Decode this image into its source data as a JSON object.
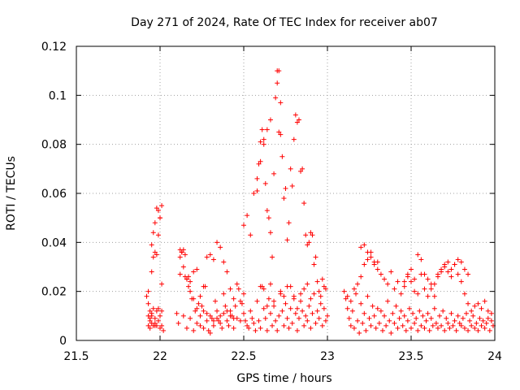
{
  "chart_data": {
    "type": "scatter",
    "title": "Day 271 of 2024, Rate Of TEC Index for receiver ab07",
    "xlabel": "GPS time / hours",
    "ylabel": "ROTI / TECUs",
    "xlim": [
      21.5,
      24
    ],
    "ylim": [
      0,
      0.12
    ],
    "x_ticks": [
      21.5,
      22,
      22.5,
      23,
      23.5,
      24
    ],
    "x_tick_labels": [
      "21.5",
      "22",
      "22.5",
      "23",
      "23.5",
      "24"
    ],
    "y_ticks": [
      0,
      0.02,
      0.04,
      0.06,
      0.08,
      0.1,
      0.12
    ],
    "y_tick_labels": [
      "0",
      "0.02",
      "0.04",
      "0.06",
      "0.08",
      "0.1",
      "0.12"
    ],
    "grid": true,
    "marker": "+",
    "color": "#ff0000",
    "series": [
      {
        "name": "ROTI",
        "x": [
          21.92,
          21.93,
          21.93,
          21.94,
          21.94,
          21.95,
          21.95,
          21.96,
          21.96,
          21.97,
          21.97,
          21.98,
          21.98,
          21.99,
          21.99,
          22.0,
          22.0,
          22.01,
          22.01,
          22.02,
          21.93,
          21.94,
          21.95,
          21.96,
          21.97,
          21.98,
          21.99,
          22.0,
          22.01,
          21.95,
          21.96,
          21.97,
          21.98,
          21.99,
          22.0,
          22.01,
          21.93,
          21.94,
          21.95,
          21.97,
          22.1,
          22.11,
          22.12,
          22.13,
          22.14,
          22.15,
          22.16,
          22.17,
          22.18,
          22.19,
          22.2,
          22.21,
          22.22,
          22.23,
          22.24,
          22.25,
          22.26,
          22.27,
          22.28,
          22.29,
          22.3,
          22.31,
          22.32,
          22.33,
          22.34,
          22.35,
          22.36,
          22.37,
          22.38,
          22.39,
          22.4,
          22.41,
          22.42,
          22.43,
          22.44,
          22.45,
          22.46,
          22.47,
          22.48,
          22.49,
          22.12,
          22.14,
          22.16,
          22.18,
          22.2,
          22.22,
          22.24,
          22.26,
          22.28,
          22.3,
          22.32,
          22.34,
          22.36,
          22.38,
          22.4,
          22.42,
          22.44,
          22.46,
          22.48,
          22.5,
          22.12,
          22.13,
          22.14,
          22.15,
          22.16,
          22.17,
          22.18,
          22.2,
          22.22,
          22.24,
          22.26,
          22.28,
          22.3,
          22.32,
          22.34,
          22.36,
          22.38,
          22.4,
          22.42,
          22.44,
          22.5,
          22.51,
          22.52,
          22.53,
          22.54,
          22.55,
          22.56,
          22.57,
          22.58,
          22.59,
          22.6,
          22.61,
          22.62,
          22.63,
          22.64,
          22.65,
          22.66,
          22.67,
          22.68,
          22.69,
          22.7,
          22.71,
          22.72,
          22.73,
          22.74,
          22.75,
          22.76,
          22.77,
          22.78,
          22.79,
          22.8,
          22.81,
          22.82,
          22.83,
          22.84,
          22.85,
          22.86,
          22.87,
          22.88,
          22.89,
          22.9,
          22.91,
          22.92,
          22.93,
          22.94,
          22.95,
          22.96,
          22.97,
          22.98,
          22.99,
          23.0,
          22.5,
          22.52,
          22.54,
          22.56,
          22.58,
          22.6,
          22.62,
          22.64,
          22.66,
          22.58,
          22.59,
          22.6,
          22.61,
          22.62,
          22.63,
          22.64,
          22.65,
          22.66,
          22.67,
          22.68,
          22.69,
          22.7,
          22.7,
          22.71,
          22.71,
          22.72,
          22.72,
          22.73,
          22.74,
          22.75,
          22.76,
          22.77,
          22.78,
          22.79,
          22.8,
          22.81,
          22.82,
          22.83,
          22.84,
          22.85,
          22.86,
          22.87,
          22.88,
          22.89,
          22.9,
          22.91,
          22.92,
          22.93,
          22.94,
          22.95,
          22.96,
          22.97,
          22.98,
          22.99,
          22.6,
          22.62,
          22.64,
          22.66,
          22.68,
          22.72,
          22.74,
          22.76,
          22.78,
          22.8,
          22.82,
          22.84,
          22.86,
          22.88,
          22.9,
          23.1,
          23.11,
          23.12,
          23.13,
          23.14,
          23.15,
          23.16,
          23.17,
          23.18,
          23.19,
          23.2,
          23.21,
          23.22,
          23.23,
          23.24,
          23.25,
          23.26,
          23.27,
          23.28,
          23.29,
          23.3,
          23.31,
          23.32,
          23.33,
          23.34,
          23.35,
          23.36,
          23.37,
          23.38,
          23.39,
          23.4,
          23.41,
          23.42,
          23.43,
          23.44,
          23.45,
          23.46,
          23.47,
          23.48,
          23.49,
          23.5,
          23.51,
          23.52,
          23.53,
          23.54,
          23.55,
          23.56,
          23.57,
          23.58,
          23.59,
          23.6,
          23.61,
          23.62,
          23.63,
          23.64,
          23.65,
          23.66,
          23.67,
          23.68,
          23.69,
          23.7,
          23.71,
          23.72,
          23.73,
          23.74,
          23.75,
          23.76,
          23.77,
          23.78,
          23.79,
          23.8,
          23.81,
          23.82,
          23.83,
          23.84,
          23.85,
          23.86,
          23.87,
          23.88,
          23.89,
          23.9,
          23.91,
          23.92,
          23.93,
          23.94,
          23.95,
          23.96,
          23.97,
          23.98,
          23.99,
          23.12,
          23.14,
          23.16,
          23.18,
          23.2,
          23.22,
          23.24,
          23.26,
          23.28,
          23.3,
          23.32,
          23.34,
          23.36,
          23.38,
          23.4,
          23.42,
          23.44,
          23.46,
          23.48,
          23.5,
          23.52,
          23.54,
          23.56,
          23.58,
          23.6,
          23.62,
          23.64,
          23.66,
          23.68,
          23.7,
          23.72,
          23.74,
          23.76,
          23.78,
          23.8,
          23.82,
          23.84,
          23.86,
          23.88,
          23.9,
          23.92,
          23.94,
          23.96,
          23.98,
          23.2,
          23.22,
          23.24,
          23.26,
          23.28,
          23.3,
          23.46,
          23.48,
          23.5,
          23.52,
          23.54,
          23.56,
          23.58,
          23.6,
          23.62,
          23.64,
          23.66,
          23.68,
          23.7,
          23.72,
          23.74,
          23.76,
          23.78,
          23.8,
          23.82,
          23.84
        ],
        "y": [
          0.018,
          0.006,
          0.02,
          0.005,
          0.012,
          0.007,
          0.01,
          0.006,
          0.013,
          0.006,
          0.009,
          0.012,
          0.006,
          0.008,
          0.013,
          0.005,
          0.01,
          0.006,
          0.012,
          0.004,
          0.01,
          0.009,
          0.028,
          0.034,
          0.036,
          0.035,
          0.043,
          0.05,
          0.055,
          0.039,
          0.044,
          0.048,
          0.054,
          0.053,
          0.05,
          0.023,
          0.015,
          0.008,
          0.011,
          0.007,
          0.011,
          0.007,
          0.027,
          0.036,
          0.01,
          0.026,
          0.005,
          0.022,
          0.009,
          0.017,
          0.004,
          0.012,
          0.007,
          0.015,
          0.006,
          0.014,
          0.005,
          0.022,
          0.008,
          0.004,
          0.003,
          0.009,
          0.006,
          0.016,
          0.012,
          0.008,
          0.01,
          0.005,
          0.019,
          0.014,
          0.008,
          0.006,
          0.012,
          0.01,
          0.005,
          0.014,
          0.009,
          0.021,
          0.008,
          0.015,
          0.034,
          0.03,
          0.025,
          0.02,
          0.028,
          0.029,
          0.018,
          0.022,
          0.034,
          0.035,
          0.033,
          0.04,
          0.038,
          0.032,
          0.028,
          0.021,
          0.017,
          0.023,
          0.016,
          0.019,
          0.037,
          0.036,
          0.037,
          0.035,
          0.025,
          0.026,
          0.024,
          0.017,
          0.013,
          0.01,
          0.012,
          0.011,
          0.01,
          0.008,
          0.009,
          0.007,
          0.011,
          0.012,
          0.01,
          0.009,
          0.011,
          0.008,
          0.006,
          0.005,
          0.012,
          0.009,
          0.007,
          0.004,
          0.016,
          0.008,
          0.005,
          0.022,
          0.013,
          0.009,
          0.004,
          0.017,
          0.011,
          0.006,
          0.014,
          0.008,
          0.004,
          0.01,
          0.019,
          0.012,
          0.006,
          0.015,
          0.009,
          0.005,
          0.013,
          0.007,
          0.018,
          0.011,
          0.004,
          0.009,
          0.016,
          0.012,
          0.006,
          0.01,
          0.008,
          0.014,
          0.005,
          0.011,
          0.019,
          0.007,
          0.012,
          0.009,
          0.015,
          0.006,
          0.013,
          0.008,
          0.01,
          0.047,
          0.051,
          0.043,
          0.06,
          0.066,
          0.073,
          0.08,
          0.086,
          0.09,
          0.061,
          0.072,
          0.081,
          0.086,
          0.082,
          0.064,
          0.053,
          0.05,
          0.044,
          0.034,
          0.068,
          0.099,
          0.105,
          0.11,
          0.11,
          0.085,
          0.097,
          0.084,
          0.075,
          0.058,
          0.062,
          0.041,
          0.048,
          0.07,
          0.063,
          0.082,
          0.092,
          0.089,
          0.09,
          0.069,
          0.07,
          0.056,
          0.043,
          0.039,
          0.04,
          0.044,
          0.043,
          0.031,
          0.034,
          0.024,
          0.02,
          0.018,
          0.025,
          0.022,
          0.021,
          0.022,
          0.021,
          0.014,
          0.023,
          0.016,
          0.02,
          0.018,
          0.022,
          0.022,
          0.017,
          0.013,
          0.019,
          0.021,
          0.023,
          0.017,
          0.02,
          0.017,
          0.013,
          0.009,
          0.006,
          0.012,
          0.005,
          0.019,
          0.008,
          0.003,
          0.015,
          0.007,
          0.011,
          0.004,
          0.018,
          0.009,
          0.006,
          0.014,
          0.01,
          0.005,
          0.013,
          0.007,
          0.012,
          0.004,
          0.01,
          0.006,
          0.016,
          0.008,
          0.003,
          0.011,
          0.007,
          0.014,
          0.005,
          0.009,
          0.012,
          0.006,
          0.01,
          0.004,
          0.008,
          0.013,
          0.005,
          0.011,
          0.007,
          0.009,
          0.004,
          0.012,
          0.006,
          0.01,
          0.005,
          0.008,
          0.011,
          0.004,
          0.009,
          0.006,
          0.013,
          0.007,
          0.005,
          0.01,
          0.006,
          0.012,
          0.004,
          0.009,
          0.007,
          0.005,
          0.011,
          0.006,
          0.008,
          0.004,
          0.01,
          0.007,
          0.006,
          0.009,
          0.005,
          0.011,
          0.004,
          0.008,
          0.006,
          0.01,
          0.005,
          0.007,
          0.004,
          0.009,
          0.006,
          0.008,
          0.005,
          0.007,
          0.009,
          0.004,
          0.008,
          0.006,
          0.018,
          0.016,
          0.021,
          0.023,
          0.026,
          0.031,
          0.033,
          0.036,
          0.032,
          0.029,
          0.027,
          0.025,
          0.023,
          0.028,
          0.021,
          0.024,
          0.019,
          0.022,
          0.026,
          0.024,
          0.02,
          0.019,
          0.027,
          0.021,
          0.018,
          0.023,
          0.018,
          0.026,
          0.028,
          0.03,
          0.032,
          0.029,
          0.031,
          0.027,
          0.024,
          0.019,
          0.015,
          0.012,
          0.014,
          0.015,
          0.013,
          0.016,
          0.012,
          0.011,
          0.038,
          0.039,
          0.036,
          0.034,
          0.031,
          0.032,
          0.024,
          0.027,
          0.029,
          0.025,
          0.035,
          0.033,
          0.027,
          0.025,
          0.021,
          0.023,
          0.027,
          0.029,
          0.031,
          0.028,
          0.026,
          0.031,
          0.033,
          0.032,
          0.029,
          0.027
        ]
      }
    ]
  }
}
